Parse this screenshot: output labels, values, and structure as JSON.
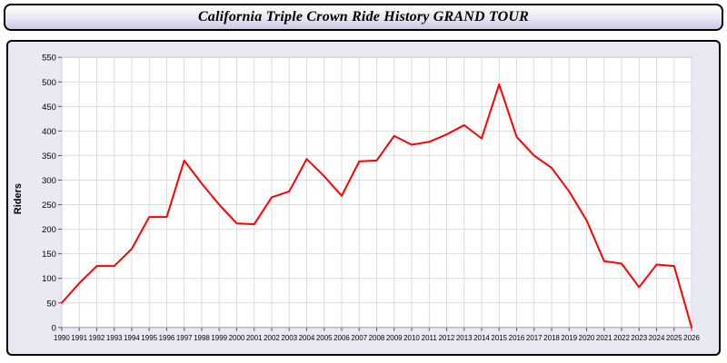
{
  "header": {
    "title": "California Triple Crown Ride History GRAND TOUR"
  },
  "chart_data": {
    "type": "line",
    "title": "California Triple Crown Ride History GRAND TOUR",
    "xlabel": "",
    "ylabel": "Riders",
    "ylim": [
      0,
      550
    ],
    "ytick_step": 50,
    "yticks": [
      0,
      50,
      100,
      150,
      200,
      250,
      300,
      350,
      400,
      450,
      500,
      550
    ],
    "grid": true,
    "legend": "none",
    "x": [
      1990,
      1991,
      1992,
      1993,
      1994,
      1995,
      1996,
      1997,
      1998,
      1999,
      2000,
      2001,
      2002,
      2003,
      2004,
      2005,
      2006,
      2007,
      2008,
      2009,
      2010,
      2011,
      2012,
      2013,
      2014,
      2015,
      2016,
      2017,
      2018,
      2019,
      2020,
      2021,
      2022,
      2023,
      2024,
      2025,
      2026
    ],
    "series": [
      {
        "name": "Riders",
        "color": "#ff0000",
        "values": [
          50,
          90,
          125,
          125,
          160,
          225,
          225,
          340,
          293,
          250,
          212,
          210,
          265,
          277,
          343,
          308,
          268,
          338,
          340,
          390,
          372,
          378,
          393,
          412,
          385,
          495,
          388,
          350,
          325,
          277,
          218,
          135,
          130,
          82,
          128,
          125,
          0
        ]
      }
    ],
    "colors": {
      "plot_background": "#ffffff",
      "panel_background": "#e9e9f3",
      "grid_line": "#dcdcdc",
      "plot_border": "#9a9a9a",
      "tick": "#555566"
    }
  }
}
